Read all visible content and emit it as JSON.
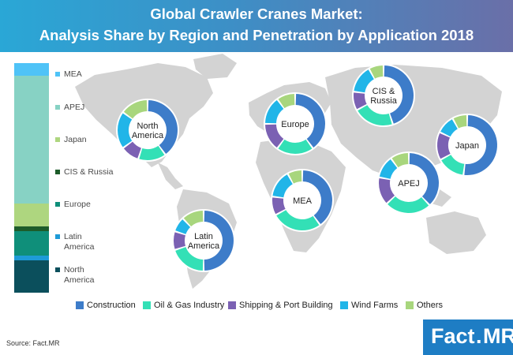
{
  "header": {
    "title_line1": "Global Crawler Cranes Market:",
    "title_line2": "Analysis Share by Region and Penetration by Application 2018"
  },
  "colors": {
    "Construction": "#3d7cc9",
    "Oil & Gas Industry": "#33e0b6",
    "Shipping & Port Building": "#7b61b3",
    "Wind Farms": "#21b5e8",
    "Others": "#a8d67d",
    "MEA": "#4fc3f7",
    "APEJ": "#87d2c4",
    "Japan": "#aed67f",
    "CIS & Russia": "#1d5c2a",
    "Europe": "#0f8f7a",
    "Latin America": "#1e9bd7",
    "North America": "#0b4f5c",
    "map": "#d3d3d3",
    "header_start": "#2aa7d6",
    "header_end": "#6a6fa8"
  },
  "chart_data": [
    {
      "type": "bar",
      "stacked": true,
      "orientation": "vertical",
      "title": "",
      "categories": [
        "MEA",
        "APEJ",
        "Japan",
        "CIS & Russia",
        "Europe",
        "Latin America",
        "North America"
      ],
      "values": [
        5.5,
        57,
        10,
        2,
        11,
        2,
        14.5
      ],
      "unit": "%",
      "legend": [
        "MEA",
        "APEJ",
        "Japan",
        "CIS & Russia",
        "Europe",
        "Latin\nAmerica",
        "North\nAmerica"
      ]
    },
    {
      "type": "pie",
      "donut": true,
      "title": "Penetration by Application 2018",
      "categories": [
        "Construction",
        "Oil & Gas Industry",
        "Shipping & Port Building",
        "Wind Farms",
        "Others"
      ],
      "donuts": [
        {
          "region": "North\nAmerica",
          "values": [
            40,
            15,
            10,
            20,
            15
          ]
        },
        {
          "region": "Europe",
          "values": [
            40,
            20,
            15,
            15,
            10
          ]
        },
        {
          "region": "CIS &\nRussia",
          "values": [
            45,
            22,
            10,
            15,
            8
          ]
        },
        {
          "region": "Japan",
          "values": [
            52,
            15,
            15,
            10,
            8
          ]
        },
        {
          "region": "APEJ",
          "values": [
            38,
            25,
            15,
            12,
            10
          ]
        },
        {
          "region": "MEA",
          "values": [
            40,
            27,
            10,
            15,
            8
          ]
        },
        {
          "region": "Latin\nAmerica",
          "values": [
            50,
            20,
            10,
            8,
            12
          ]
        }
      ]
    }
  ],
  "footer": {
    "source": "Source: Fact.MR",
    "logo_fact": "Fact",
    "logo_dot": ".",
    "logo_mr": "MR"
  }
}
